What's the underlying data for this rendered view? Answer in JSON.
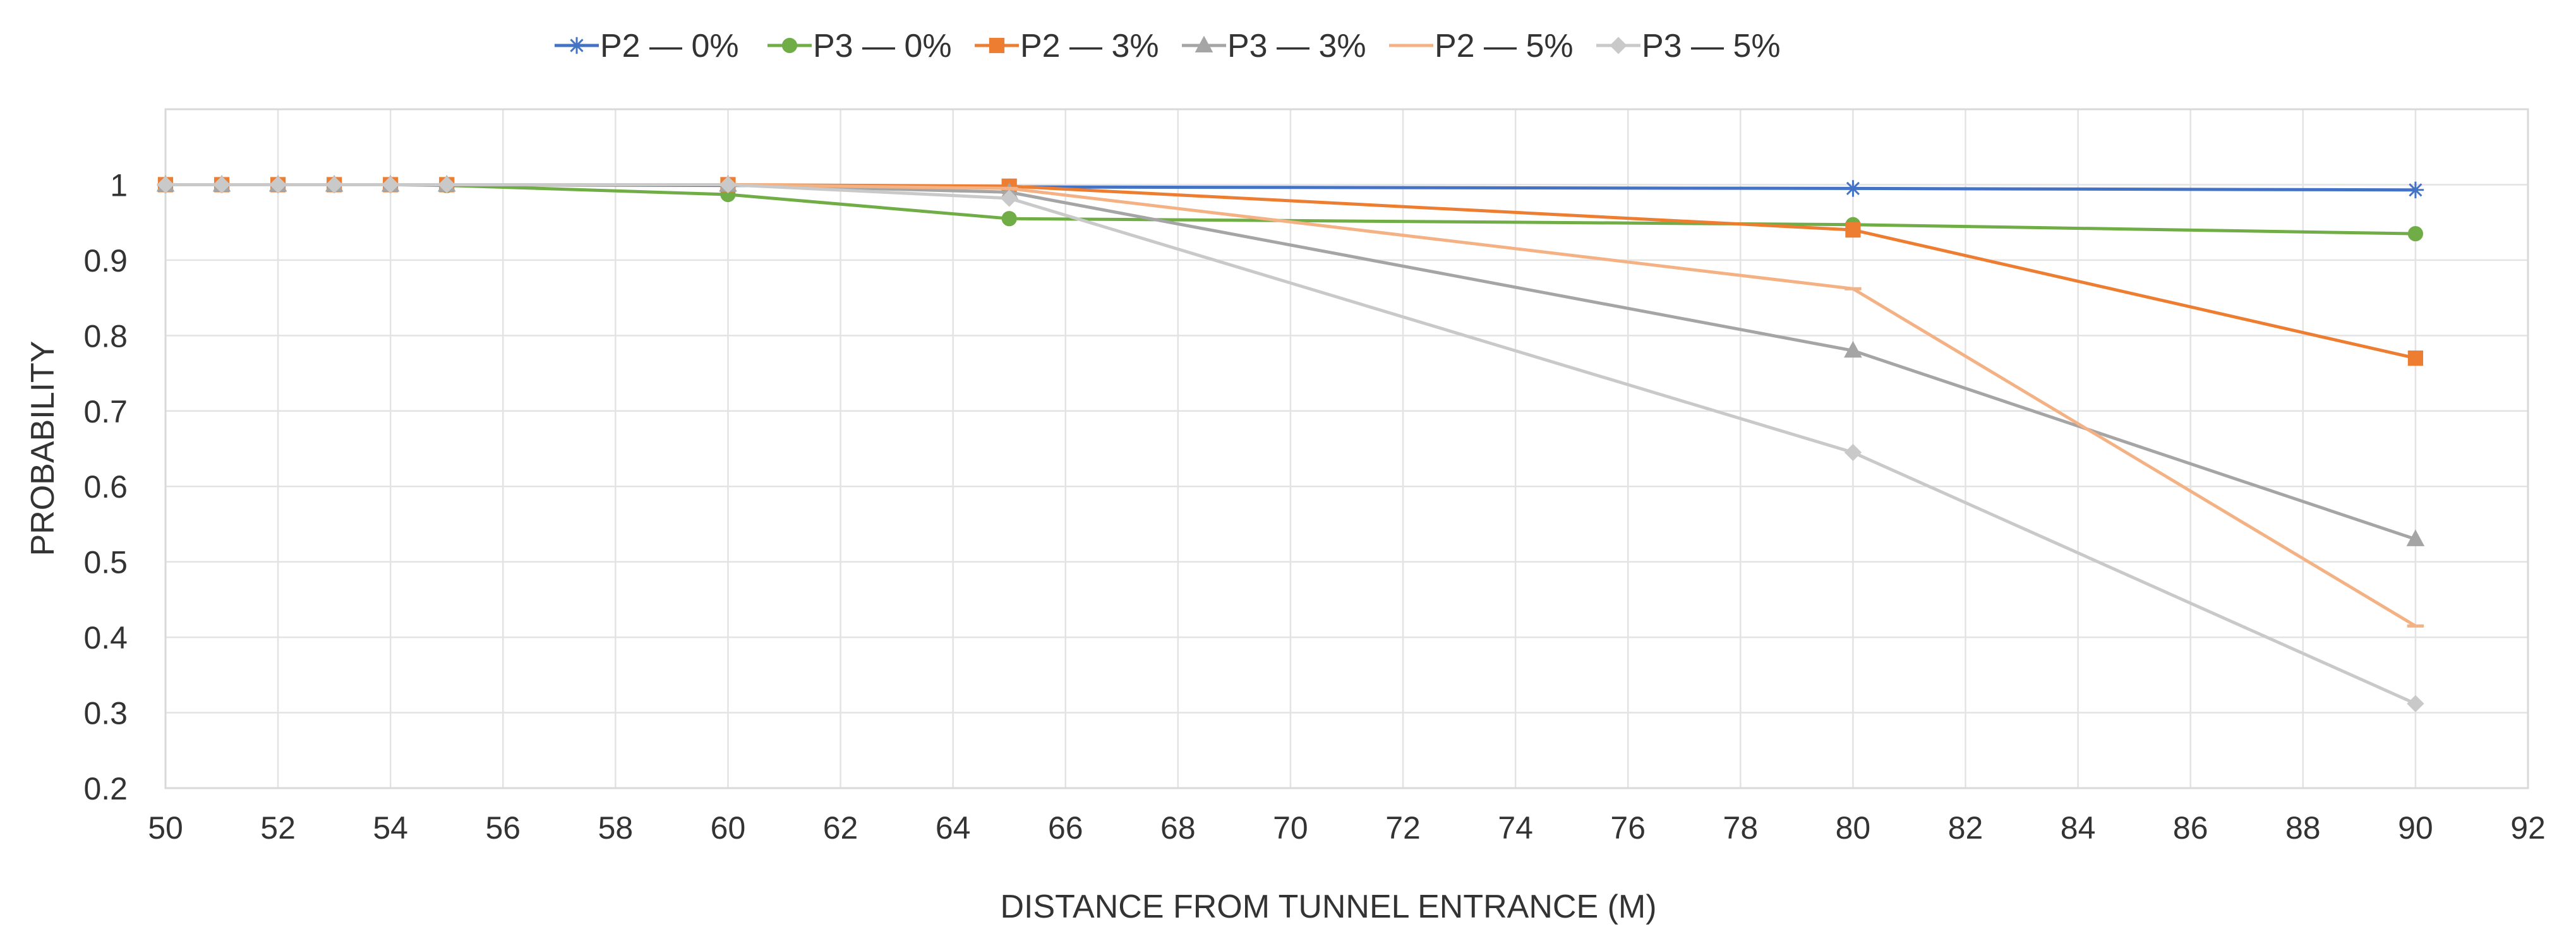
{
  "chart_data": {
    "type": "line",
    "title": "",
    "xlabel": "DISTANCE FROM TUNNEL ENTRANCE (M)",
    "ylabel": "PROBABILITY",
    "xlim": [
      50,
      92
    ],
    "ylim": [
      0.2,
      1.1
    ],
    "x_ticks": [
      50,
      52,
      54,
      56,
      58,
      60,
      62,
      64,
      66,
      68,
      70,
      72,
      74,
      76,
      78,
      80,
      82,
      84,
      86,
      88,
      90,
      92
    ],
    "y_ticks": [
      0.2,
      0.3,
      0.4,
      0.5,
      0.6,
      0.7,
      0.8,
      0.9,
      1
    ],
    "grid": true,
    "legend_position": "top",
    "x": [
      50,
      51,
      52,
      53,
      54,
      55,
      60,
      65,
      80,
      90
    ],
    "series": [
      {
        "name": "P2 — 0%",
        "color": "#4472C4",
        "marker": "star",
        "values": [
          1,
          1,
          1,
          1,
          1,
          1,
          0.999,
          0.997,
          0.995,
          0.993
        ]
      },
      {
        "name": "P3 — 0%",
        "color": "#70AD47",
        "marker": "circle",
        "values": [
          1,
          1,
          1,
          1,
          1,
          0.999,
          0.987,
          0.955,
          0.947,
          0.935
        ]
      },
      {
        "name": "P2 — 3%",
        "color": "#ED7D31",
        "marker": "square",
        "values": [
          1,
          1,
          1,
          1,
          1,
          1,
          1,
          0.998,
          0.94,
          0.77
        ]
      },
      {
        "name": "P3 — 3%",
        "color": "#A5A5A5",
        "marker": "triangle",
        "values": [
          1,
          1,
          1,
          1,
          1,
          1,
          1,
          0.99,
          0.78,
          0.53
        ]
      },
      {
        "name": "P2 — 5%",
        "color": "#F4B183",
        "marker": "dash",
        "values": [
          1,
          1,
          1,
          1,
          1,
          1,
          1,
          0.995,
          0.862,
          0.415
        ]
      },
      {
        "name": "P3 — 5%",
        "color": "#C9C9C9",
        "marker": "diamond",
        "values": [
          1,
          1,
          1,
          1,
          1,
          1,
          1,
          0.982,
          0.645,
          0.312
        ]
      }
    ]
  }
}
